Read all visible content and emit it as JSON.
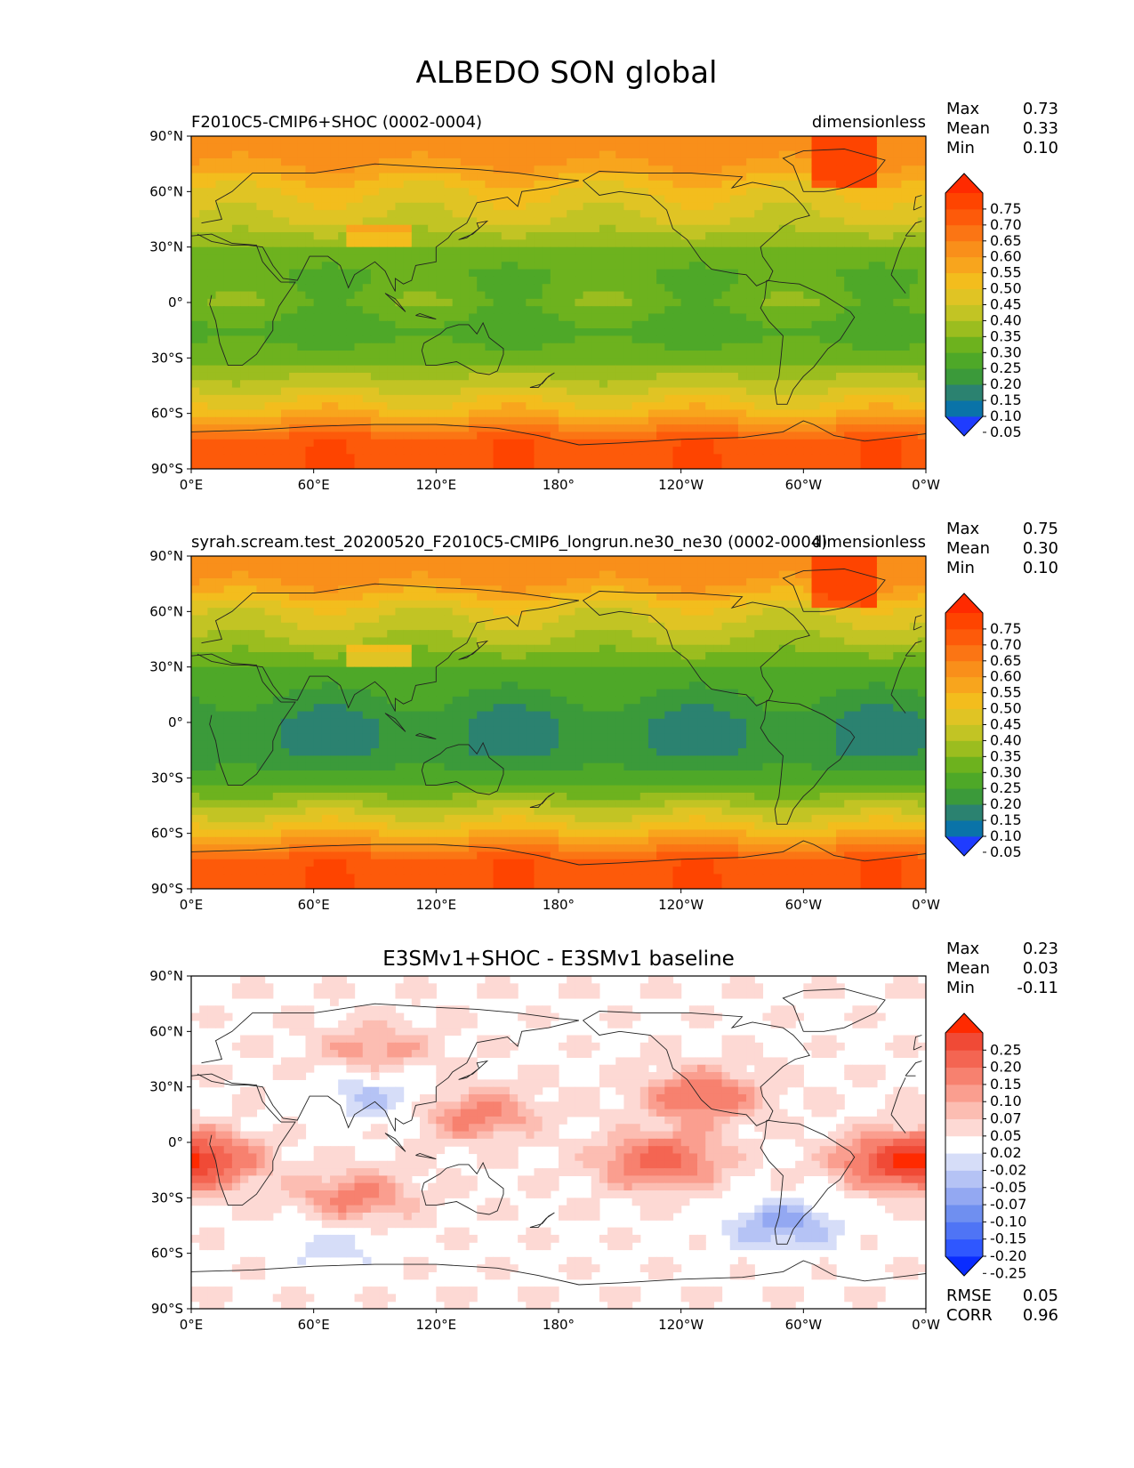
{
  "title": "ALBEDO SON global",
  "x_ticks": [
    "0°E",
    "60°E",
    "120°E",
    "180°",
    "120°W",
    "60°W",
    "0°W"
  ],
  "y_ticks": [
    "90°N",
    "60°N",
    "30°N",
    "0°",
    "30°S",
    "60°S",
    "90°S"
  ],
  "panels": [
    {
      "left_title": "F2010C5-CMIP6+SHOC (0002-0004)",
      "center_title": "",
      "right_title": "dimensionless",
      "stats": [
        {
          "label": "Max",
          "value": "0.73"
        },
        {
          "label": "Mean",
          "value": "0.33"
        },
        {
          "label": "Min",
          "value": "0.10"
        }
      ],
      "colorbar_ticks": [
        "0.75",
        "0.70",
        "0.65",
        "0.60",
        "0.55",
        "0.50",
        "0.45",
        "0.40",
        "0.35",
        "0.30",
        "0.25",
        "0.20",
        "0.15",
        "0.10",
        "0.05"
      ],
      "colorbar_colors": [
        "#1f3cff",
        "#0a73a8",
        "#2b8270",
        "#3b9a3a",
        "#4ea828",
        "#6db21e",
        "#9bbd1f",
        "#c2c424",
        "#e0c424",
        "#f3bd1d",
        "#f8a51d",
        "#f98f1a",
        "#fb7514",
        "#fd5a0a",
        "#fe4400",
        "#ff2a00"
      ],
      "extra_stats": []
    },
    {
      "left_title": "syrah.scream.test_20200520_F2010C5-CMIP6_longrun.ne30_ne30 (0002-0004)",
      "center_title": "",
      "right_title": "dimensionless",
      "stats": [
        {
          "label": "Max",
          "value": "0.75"
        },
        {
          "label": "Mean",
          "value": "0.30"
        },
        {
          "label": "Min",
          "value": "0.10"
        }
      ],
      "colorbar_ticks": [
        "0.75",
        "0.70",
        "0.65",
        "0.60",
        "0.55",
        "0.50",
        "0.45",
        "0.40",
        "0.35",
        "0.30",
        "0.25",
        "0.20",
        "0.15",
        "0.10",
        "0.05"
      ],
      "colorbar_colors": [
        "#1f3cff",
        "#0a73a8",
        "#2b8270",
        "#3b9a3a",
        "#4ea828",
        "#6db21e",
        "#9bbd1f",
        "#c2c424",
        "#e0c424",
        "#f3bd1d",
        "#f8a51d",
        "#f98f1a",
        "#fb7514",
        "#fd5a0a",
        "#fe4400",
        "#ff2a00"
      ],
      "extra_stats": []
    },
    {
      "left_title": "",
      "center_title": "E3SMv1+SHOC - E3SMv1 baseline",
      "right_title": "",
      "stats": [
        {
          "label": "Max",
          "value": "0.23"
        },
        {
          "label": "Mean",
          "value": "0.03"
        },
        {
          "label": "Min",
          "value": "-0.11"
        }
      ],
      "colorbar_ticks": [
        "0.25",
        "0.20",
        "0.15",
        "0.10",
        "0.07",
        "0.05",
        "0.02",
        "-0.02",
        "-0.05",
        "-0.07",
        "-0.10",
        "-0.15",
        "-0.20",
        "-0.25"
      ],
      "colorbar_colors": [
        "#0a2cff",
        "#2f57ff",
        "#4f74f5",
        "#6f8ff0",
        "#93a8f2",
        "#b5c3f5",
        "#d6ddf8",
        "#ffffff",
        "#fdd9d4",
        "#fcbdb2",
        "#fa9e8f",
        "#f7816f",
        "#f46552",
        "#f04a36",
        "#ff2a00"
      ],
      "extra_stats": [
        {
          "label": "RMSE",
          "value": "0.05"
        },
        {
          "label": "CORR",
          "value": "0.96"
        }
      ]
    }
  ],
  "chart_data": [
    {
      "type": "heatmap",
      "title": "F2010C5-CMIP6+SHOC (0002-0004)",
      "units": "dimensionless",
      "x": [
        0,
        60,
        120,
        180,
        240,
        300,
        360
      ],
      "y": [
        -90,
        -60,
        -30,
        0,
        30,
        60,
        90
      ],
      "xlim": [
        0,
        360
      ],
      "ylim": [
        -90,
        90
      ],
      "zonal_profile": {
        "lat": [
          90,
          75,
          60,
          45,
          30,
          15,
          0,
          -15,
          -30,
          -45,
          -60,
          -75,
          -90
        ],
        "value": [
          0.6,
          0.55,
          0.45,
          0.4,
          0.3,
          0.25,
          0.28,
          0.22,
          0.28,
          0.38,
          0.5,
          0.68,
          0.7
        ]
      },
      "levels": [
        0.05,
        0.1,
        0.15,
        0.2,
        0.25,
        0.3,
        0.35,
        0.4,
        0.45,
        0.5,
        0.55,
        0.6,
        0.65,
        0.7,
        0.75
      ],
      "max": 0.73,
      "mean": 0.33,
      "min": 0.1
    },
    {
      "type": "heatmap",
      "title": "syrah.scream.test_20200520_F2010C5-CMIP6_longrun.ne30_ne30 (0002-0004)",
      "units": "dimensionless",
      "x": [
        0,
        60,
        120,
        180,
        240,
        300,
        360
      ],
      "y": [
        -90,
        -60,
        -30,
        0,
        30,
        60,
        90
      ],
      "xlim": [
        0,
        360
      ],
      "ylim": [
        -90,
        90
      ],
      "zonal_profile": {
        "lat": [
          90,
          75,
          60,
          45,
          30,
          15,
          0,
          -15,
          -30,
          -45,
          -60,
          -75,
          -90
        ],
        "value": [
          0.6,
          0.55,
          0.42,
          0.35,
          0.25,
          0.2,
          0.15,
          0.15,
          0.22,
          0.35,
          0.5,
          0.68,
          0.7
        ]
      },
      "levels": [
        0.05,
        0.1,
        0.15,
        0.2,
        0.25,
        0.3,
        0.35,
        0.4,
        0.45,
        0.5,
        0.55,
        0.6,
        0.65,
        0.7,
        0.75
      ],
      "max": 0.75,
      "mean": 0.3,
      "min": 0.1
    },
    {
      "type": "heatmap",
      "title": "E3SMv1+SHOC - E3SMv1 baseline",
      "x": [
        0,
        60,
        120,
        180,
        240,
        300,
        360
      ],
      "y": [
        -90,
        -60,
        -30,
        0,
        30,
        60,
        90
      ],
      "xlim": [
        0,
        360
      ],
      "ylim": [
        -90,
        90
      ],
      "anomaly_centers": [
        {
          "lon": 230,
          "lat": -10,
          "value": 0.15
        },
        {
          "lon": 250,
          "lat": 25,
          "value": 0.12
        },
        {
          "lon": 345,
          "lat": -10,
          "value": 0.15
        },
        {
          "lon": 5,
          "lat": -10,
          "value": 0.15
        },
        {
          "lon": 80,
          "lat": -30,
          "value": 0.1
        },
        {
          "lon": 90,
          "lat": 50,
          "value": 0.07
        },
        {
          "lon": 140,
          "lat": 15,
          "value": 0.1
        },
        {
          "lon": 90,
          "lat": 25,
          "value": -0.07
        },
        {
          "lon": 70,
          "lat": -55,
          "value": -0.05
        },
        {
          "lon": 290,
          "lat": -45,
          "value": -0.1
        }
      ],
      "levels": [
        -0.25,
        -0.2,
        -0.15,
        -0.1,
        -0.07,
        -0.05,
        -0.02,
        0.02,
        0.05,
        0.07,
        0.1,
        0.15,
        0.2,
        0.25
      ],
      "max": 0.23,
      "mean": 0.03,
      "min": -0.11,
      "rmse": 0.05,
      "corr": 0.96
    }
  ]
}
